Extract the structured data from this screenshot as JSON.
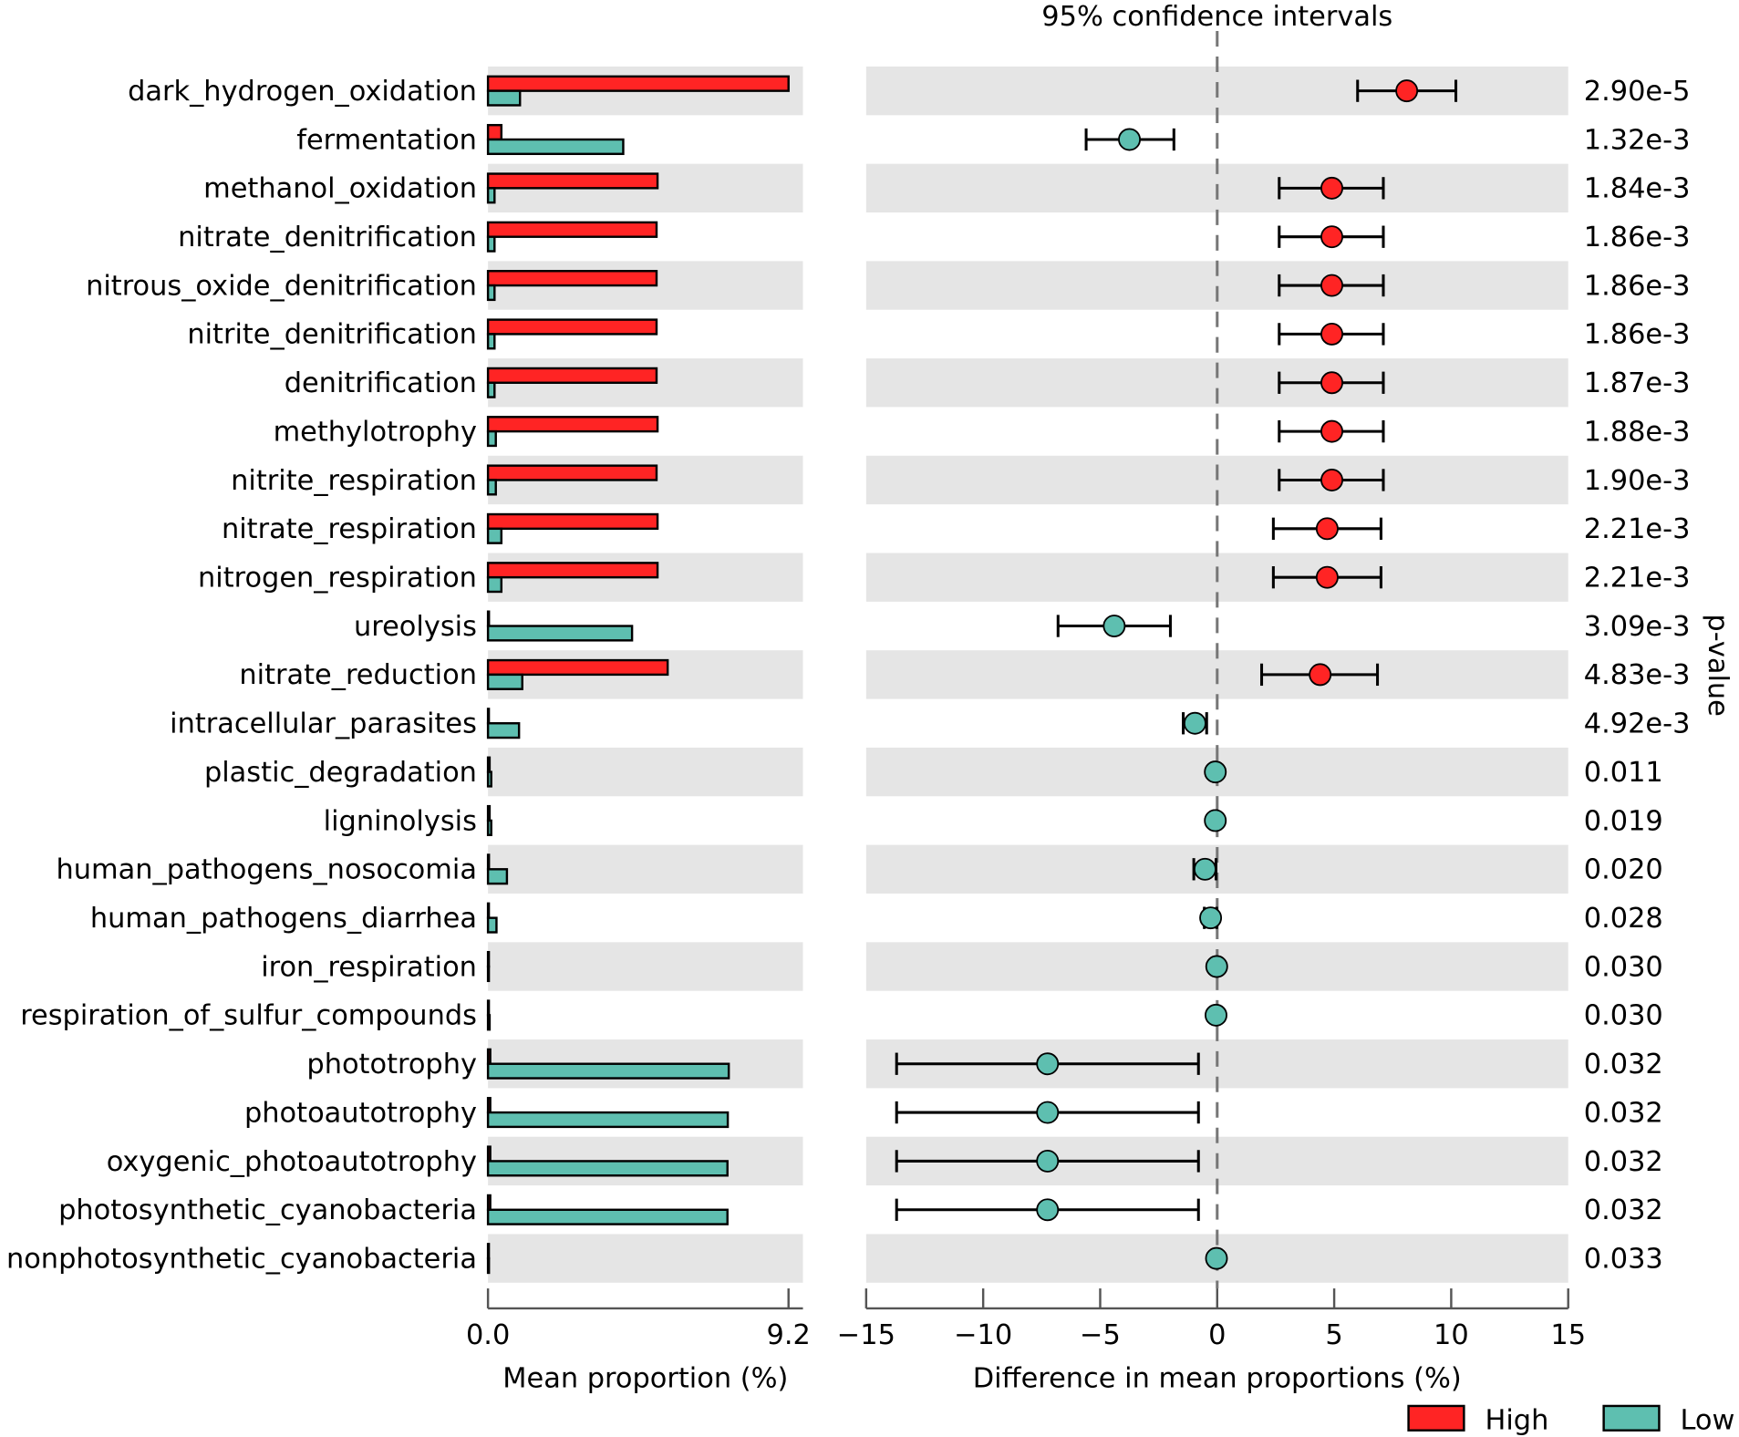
{
  "chart_data": {
    "type": "bar",
    "categories": [
      "dark_hydrogen_oxidation",
      "fermentation",
      "methanol_oxidation",
      "nitrate_denitrification",
      "nitrous_oxide_denitrification",
      "nitrite_denitrification",
      "denitrification",
      "methylotrophy",
      "nitrite_respiration",
      "nitrate_respiration",
      "nitrogen_respiration",
      "ureolysis",
      "nitrate_reduction",
      "intracellular_parasites",
      "plastic_degradation",
      "ligninolysis",
      "human_pathogens_nosocomia",
      "human_pathogens_diarrhea",
      "iron_respiration",
      "respiration_of_sulfur_compounds",
      "phototrophy",
      "photoautotrophy",
      "oxygenic_photoautotrophy",
      "photosynthetic_cyanobacteria",
      "nonphotosynthetic_cyanobacteria"
    ],
    "series": [
      {
        "name": "High",
        "color": "#ff2424",
        "values": [
          9.2,
          0.41,
          5.19,
          5.16,
          5.16,
          5.16,
          5.16,
          5.19,
          5.16,
          5.19,
          5.19,
          0.03,
          5.5,
          0.02,
          0.05,
          0.05,
          0.03,
          0.02,
          0.01,
          0.02,
          0.07,
          0.07,
          0.07,
          0.07,
          0.01
        ]
      },
      {
        "name": "Low",
        "color": "#5ebfb0",
        "values": [
          0.98,
          4.14,
          0.2,
          0.2,
          0.2,
          0.2,
          0.2,
          0.24,
          0.24,
          0.41,
          0.41,
          4.41,
          1.05,
          0.95,
          0.1,
          0.1,
          0.58,
          0.26,
          0.02,
          0.05,
          7.37,
          7.34,
          7.33,
          7.33,
          0.03
        ]
      }
    ],
    "xlabel": "Mean proportion (%)",
    "xlim": [
      0,
      9.2
    ],
    "xtick_values": [
      0,
      9.2
    ],
    "xtick_labels": [
      "0.0",
      "9.2"
    ],
    "ci_panel": {
      "title": "95% confidence intervals",
      "xlabel": "Difference in mean proportions (%)",
      "xlim": [
        -15,
        15
      ],
      "xtick_values": [
        -15,
        -10,
        -5,
        0,
        5,
        10,
        15
      ],
      "xtick_labels": [
        "−15",
        "−10",
        "−5",
        "0",
        "5",
        "10",
        "15"
      ],
      "difference": [
        8.1,
        -3.75,
        4.9,
        4.9,
        4.9,
        4.9,
        4.9,
        4.9,
        4.9,
        4.7,
        4.7,
        -4.4,
        4.4,
        -0.95,
        -0.08,
        -0.08,
        -0.52,
        -0.28,
        -0.02,
        -0.05,
        -7.25,
        -7.25,
        -7.25,
        -7.25,
        -0.03
      ],
      "ci_low": [
        6.0,
        -5.6,
        2.65,
        2.65,
        2.65,
        2.65,
        2.65,
        2.65,
        2.65,
        2.4,
        2.4,
        -6.8,
        1.9,
        -1.45,
        -0.15,
        -0.15,
        -1.0,
        -0.55,
        -0.03,
        -0.08,
        -13.7,
        -13.7,
        -13.7,
        -13.7,
        -0.05
      ],
      "ci_high": [
        10.2,
        -1.85,
        7.1,
        7.1,
        7.1,
        7.1,
        7.1,
        7.1,
        7.1,
        7.0,
        7.0,
        -2.0,
        6.85,
        -0.45,
        -0.01,
        -0.01,
        -0.05,
        -0.02,
        -0.005,
        -0.01,
        -0.8,
        -0.8,
        -0.8,
        -0.8,
        -0.005
      ]
    },
    "p_value_label": "p-value",
    "p_values": [
      "2.90e-5",
      "1.32e-3",
      "1.84e-3",
      "1.86e-3",
      "1.86e-3",
      "1.86e-3",
      "1.87e-3",
      "1.88e-3",
      "1.90e-3",
      "2.21e-3",
      "2.21e-3",
      "3.09e-3",
      "4.83e-3",
      "4.92e-3",
      "0.011",
      "0.019",
      "0.020",
      "0.028",
      "0.030",
      "0.030",
      "0.032",
      "0.032",
      "0.032",
      "0.032",
      "0.033"
    ]
  }
}
